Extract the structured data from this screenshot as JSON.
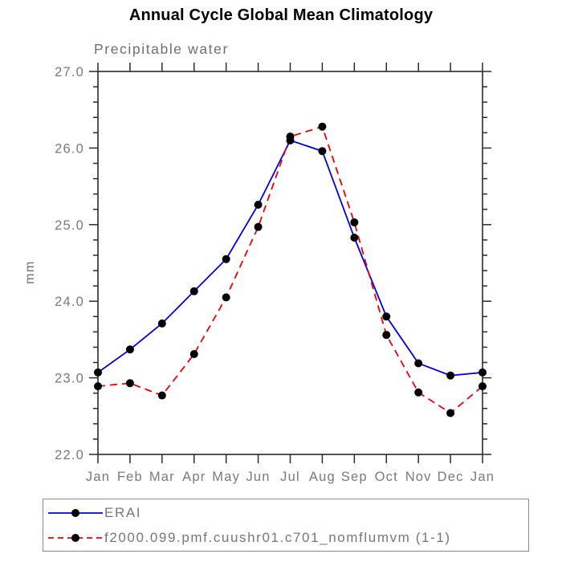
{
  "header": {
    "title": "Annual Cycle Global Mean Climatology"
  },
  "chart_data": {
    "type": "line",
    "title": "Annual Cycle Global Mean Climatology",
    "subtitle": "Precipitable water",
    "xlabel": "",
    "ylabel": "mm",
    "x_labels": [
      "Jan",
      "Feb",
      "Mar",
      "Apr",
      "May",
      "Jun",
      "Jul",
      "Aug",
      "Sep",
      "Oct",
      "Nov",
      "Dec",
      "Jan"
    ],
    "ylim": [
      22.0,
      27.0
    ],
    "y_major_step": 1.0,
    "y_minor_step": 0.2,
    "y_tick_decimals": 1,
    "grid": false,
    "legend_position": "bottom-left-box",
    "axis_color": "#2b2b2b",
    "tick_label_color": "#7a7a7a",
    "marker_color": "#000000",
    "series": [
      {
        "name": "ERAI",
        "color": "#0000e6",
        "line_style": "solid",
        "marker": "circle",
        "values": [
          23.07,
          23.37,
          23.71,
          24.13,
          24.55,
          25.26,
          26.1,
          25.96,
          24.83,
          23.8,
          23.19,
          23.03,
          23.07
        ]
      },
      {
        "name": "f2000.099.pmf.cuushr01.c701_nomflumvm (1-1)",
        "color": "#f20000",
        "line_style": "dashed",
        "marker": "circle",
        "values": [
          22.89,
          22.93,
          22.77,
          23.31,
          24.05,
          24.97,
          26.15,
          26.28,
          25.03,
          23.56,
          22.81,
          22.54,
          22.89
        ]
      }
    ]
  }
}
